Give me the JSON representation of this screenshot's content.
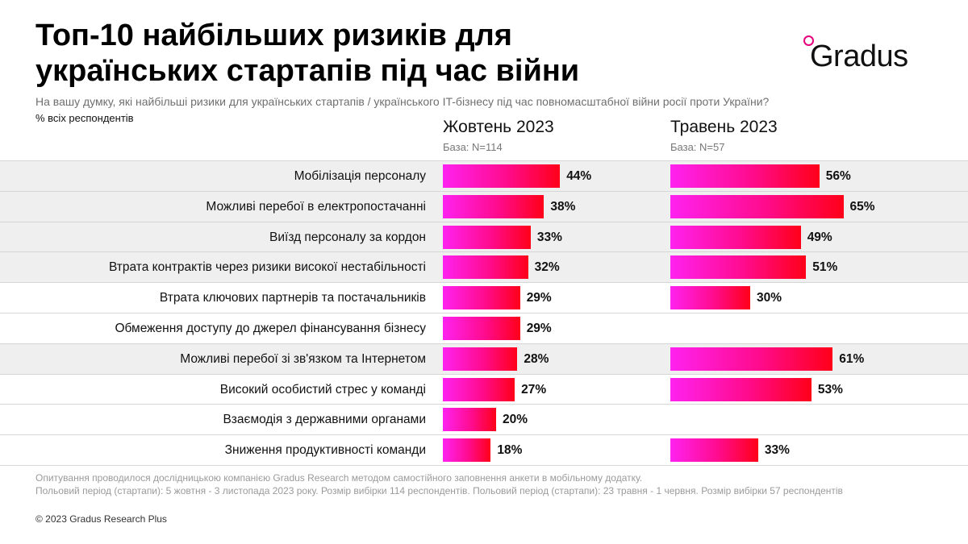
{
  "title": "Топ-10 найбільших ризиків для українських стартапів під час війни",
  "logo": {
    "text": "Gradus",
    "accent_color": "#e6007e"
  },
  "subtitle": "На вашу думку, які найбільші ризики для українських стартапів / українського IT-бізнесу під час повномасштабної війни росії проти України?",
  "unit_note": "% всіх респондентів",
  "chart_data": {
    "type": "bar",
    "orientation": "horizontal",
    "value_suffix": "%",
    "categories": [
      "Мобілізація персоналу",
      "Можливі перебої в електропостачанні",
      "Виїзд персоналу за кордон",
      "Втрата контрактів через ризики високої нестабільності",
      "Втрата ключових партнерів та постачальників",
      "Обмеження доступу до джерел фінансування бізнесу",
      "Можливі перебої зі зв'язком та Інтернетом",
      "Високий особистий стрес у команді",
      "Взаємодія з державними органами",
      "Зниження продуктивності команди"
    ],
    "series": [
      {
        "name": "Жовтень 2023",
        "base": "База: N=114",
        "values": [
          44,
          38,
          33,
          32,
          29,
          29,
          28,
          27,
          20,
          18
        ]
      },
      {
        "name": "Травень 2023",
        "base": "База: N=57",
        "values": [
          56,
          65,
          49,
          51,
          30,
          null,
          61,
          53,
          null,
          33
        ]
      }
    ],
    "bar_gradient": [
      "#ff22f0",
      "#ff0b8c",
      "#ff0019"
    ],
    "row_shading": [
      true,
      true,
      true,
      true,
      false,
      false,
      true,
      false,
      false,
      false
    ]
  },
  "footer": {
    "line1": "Опитування проводилося дослідницькою компанією Gradus Research методом самостійного заповнення анкети в мобільному додатку.",
    "line2": "Польовий період (стартапи): 5 жовтня - 3 листопада 2023 року. Розмір вибірки 114 респондентів. Польовий період (стартапи): 23 травня - 1 червня. Розмір вибірки 57 респондентів",
    "copyright": "© 2023 Gradus Research Plus"
  }
}
